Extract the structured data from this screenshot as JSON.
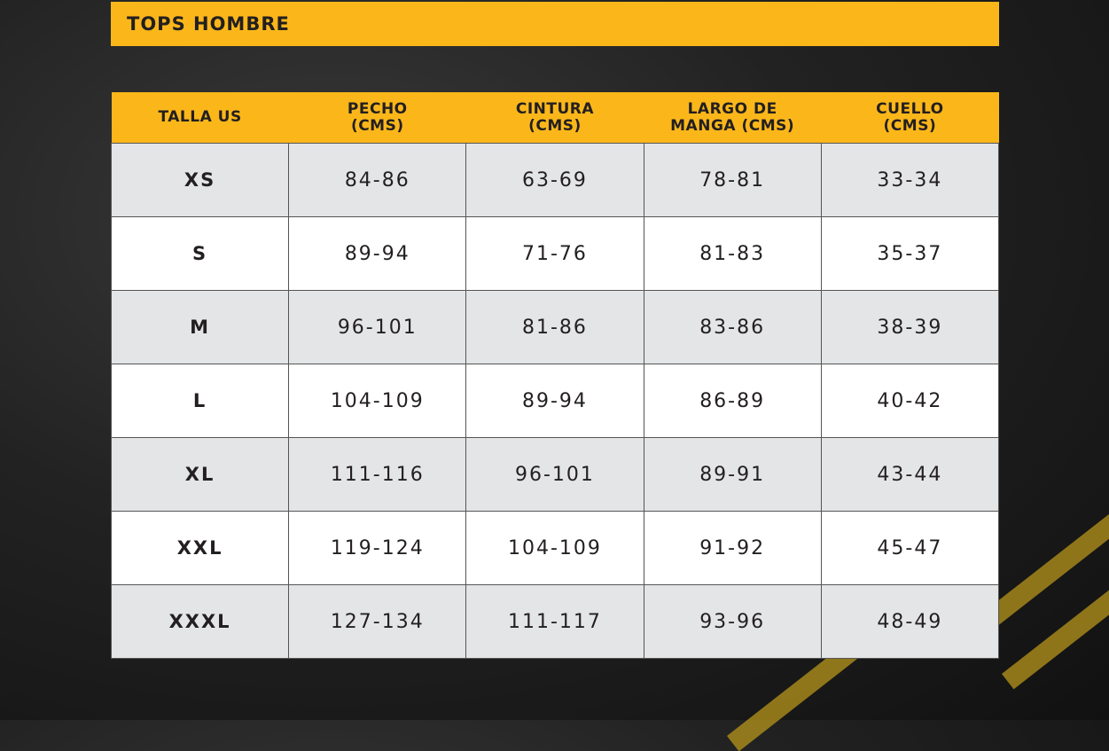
{
  "title": "TOPS HOMBRE",
  "colors": {
    "accent": "#FBB71A",
    "row_alt": "#E4E5E7",
    "border": "#555555"
  },
  "headers": [
    {
      "line1": "TALLA US",
      "line2": ""
    },
    {
      "line1": "PECHO",
      "line2": "(CMS)"
    },
    {
      "line1": "CINTURA",
      "line2": "(CMS)"
    },
    {
      "line1": "LARGO DE",
      "line2": "MANGA (CMS)"
    },
    {
      "line1": "CUELLO",
      "line2": "(CMS)"
    }
  ],
  "rows": [
    [
      "XS",
      "84-86",
      "63-69",
      "78-81",
      "33-34"
    ],
    [
      "S",
      "89-94",
      "71-76",
      "81-83",
      "35-37"
    ],
    [
      "M",
      "96-101",
      "81-86",
      "83-86",
      "38-39"
    ],
    [
      "L",
      "104-109",
      "89-94",
      "86-89",
      "40-42"
    ],
    [
      "XL",
      "111-116",
      "96-101",
      "89-91",
      "43-44"
    ],
    [
      "XXL",
      "119-124",
      "104-109",
      "91-92",
      "45-47"
    ],
    [
      "XXXL",
      "127-134",
      "111-117",
      "93-96",
      "48-49"
    ]
  ]
}
